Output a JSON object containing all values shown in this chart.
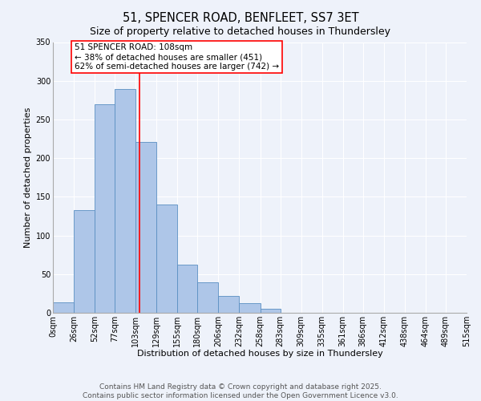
{
  "title": "51, SPENCER ROAD, BENFLEET, SS7 3ET",
  "subtitle": "Size of property relative to detached houses in Thundersley",
  "xlabel": "Distribution of detached houses by size in Thundersley",
  "ylabel": "Number of detached properties",
  "bin_edges": [
    0,
    26,
    52,
    77,
    103,
    129,
    155,
    180,
    206,
    232,
    258,
    283,
    309,
    335,
    361,
    386,
    412,
    438,
    464,
    489,
    515
  ],
  "counts": [
    13,
    133,
    270,
    289,
    221,
    140,
    62,
    39,
    22,
    12,
    5,
    0,
    0,
    0,
    0,
    0,
    0,
    0,
    0,
    0
  ],
  "bar_color": "#aec6e8",
  "bar_edge_color": "#5a8fc2",
  "property_size": 108,
  "vline_color": "red",
  "annotation_text": "51 SPENCER ROAD: 108sqm\n← 38% of detached houses are smaller (451)\n62% of semi-detached houses are larger (742) →",
  "annotation_box_color": "white",
  "annotation_box_edge_color": "red",
  "ylim": [
    0,
    350
  ],
  "yticks": [
    0,
    50,
    100,
    150,
    200,
    250,
    300,
    350
  ],
  "tick_labels": [
    "0sqm",
    "26sqm",
    "52sqm",
    "77sqm",
    "103sqm",
    "129sqm",
    "155sqm",
    "180sqm",
    "206sqm",
    "232sqm",
    "258sqm",
    "283sqm",
    "309sqm",
    "335sqm",
    "361sqm",
    "386sqm",
    "412sqm",
    "438sqm",
    "464sqm",
    "489sqm",
    "515sqm"
  ],
  "background_color": "#eef2fa",
  "footer_line1": "Contains HM Land Registry data © Crown copyright and database right 2025.",
  "footer_line2": "Contains public sector information licensed under the Open Government Licence v3.0.",
  "title_fontsize": 10.5,
  "subtitle_fontsize": 9,
  "axis_label_fontsize": 8,
  "tick_fontsize": 7,
  "annotation_fontsize": 7.5,
  "footer_fontsize": 6.5
}
